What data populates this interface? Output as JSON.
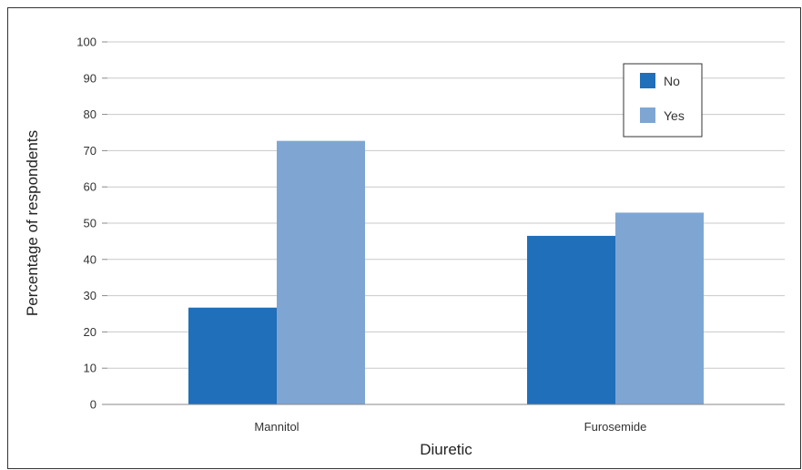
{
  "chart_data": {
    "type": "bar",
    "title": "",
    "xlabel": "Diuretic",
    "ylabel": "Percentage of respondents",
    "categories": [
      "Mannitol",
      "Furosemide"
    ],
    "series": [
      {
        "name": "No",
        "color": "#1f6fba",
        "values": [
          26.7,
          46.5
        ]
      },
      {
        "name": "Yes",
        "color": "#7fa6d3",
        "values": [
          72.7,
          52.9
        ]
      }
    ],
    "ylim": [
      0,
      100
    ],
    "yticks": [
      "0",
      "10",
      "20",
      "30",
      "40",
      "50",
      "60",
      "70",
      "80",
      "90",
      "100"
    ],
    "grid": true,
    "legend_position": "top-right"
  }
}
